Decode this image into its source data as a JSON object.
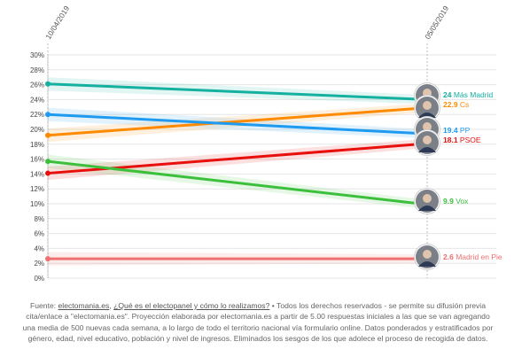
{
  "chart_data": {
    "type": "line",
    "x": [
      "10/04/2019",
      "05/05/2019"
    ],
    "ylim": [
      0,
      30
    ],
    "yticks": [
      "0%",
      "2%",
      "4%",
      "6%",
      "8%",
      "10%",
      "12%",
      "14%",
      "16%",
      "18%",
      "20%",
      "22%",
      "24%",
      "26%",
      "28%",
      "30%"
    ],
    "grid": true,
    "series": [
      {
        "name": "Más Madrid",
        "values": [
          26.1,
          24
        ],
        "end_label": "24",
        "color": "#14b0a0"
      },
      {
        "name": "Cs",
        "values": [
          19.2,
          22.9
        ],
        "end_label": "22.9",
        "color": "#ff8a00"
      },
      {
        "name": "PP",
        "values": [
          22.0,
          19.4
        ],
        "end_label": "19.4",
        "color": "#1e9bf0"
      },
      {
        "name": "PSOE",
        "values": [
          14.1,
          18.1
        ],
        "end_label": "18.1",
        "color": "#e8100c"
      },
      {
        "name": "Vox",
        "values": [
          15.7,
          9.9
        ],
        "end_label": "9.9",
        "color": "#3cc03c"
      },
      {
        "name": "Madrid en Pie",
        "values": [
          2.6,
          2.6
        ],
        "end_label": "2.6",
        "color": "#f07070"
      }
    ]
  },
  "footer": {
    "prefix": "Fuente: ",
    "link1": "electomania.es",
    "sep": ", ",
    "link2": "¿Qué es el electopanel y cómo lo realizamos?",
    "body": " • Todos los derechos reservados - se permite su difusión previa cita/enlace a \"electomania.es\". Proyección elaborada por electomania.es a partir de 5.00 respuestas iniciales a las que se van agregando una media de 500 nuevas cada semana, a lo largo de todo el territorio nacional vía formulario online. Datos ponderados y estratificados por género, edad, nivel educativo, población y nivel de ingresos. Eliminados los sesgos de los que adolece el proceso de recogida de datos."
  }
}
